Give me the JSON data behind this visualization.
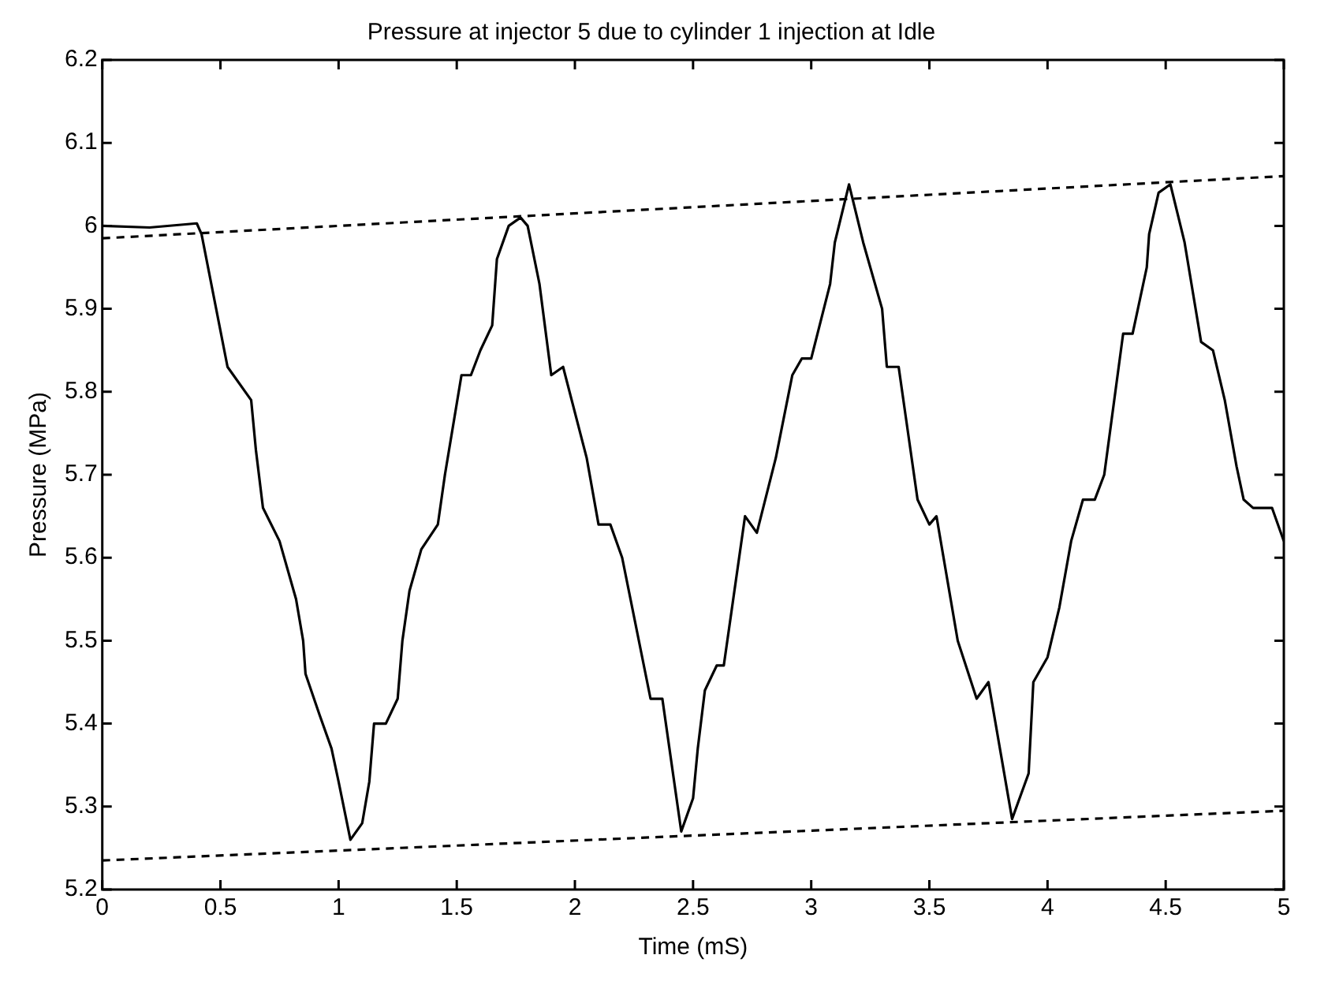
{
  "chart_data": {
    "type": "line",
    "title": "Pressure at injector 5 due to cylinder 1 injection at Idle",
    "xlabel": "Time (mS)",
    "ylabel": "Pressure (MPa)",
    "xlim": [
      0,
      5
    ],
    "xticks": [
      0,
      0.5,
      1,
      1.5,
      2,
      2.5,
      3,
      3.5,
      4,
      4.5,
      5
    ],
    "ylim": [
      5.2,
      6.2
    ],
    "yticks": [
      5.2,
      5.3,
      5.4,
      5.5,
      5.6,
      5.7,
      5.8,
      5.9,
      6,
      6.1,
      6.2
    ],
    "grid": false,
    "legend": false,
    "marker": "none",
    "series": [
      {
        "color": "#000000",
        "line_style": "solid",
        "x": [
          0,
          0.2,
          0.4,
          0.42,
          0.53,
          0.63,
          0.65,
          0.68,
          0.75,
          0.82,
          0.85,
          0.86,
          0.92,
          0.97,
          1.0,
          1.05,
          1.1,
          1.13,
          1.15,
          1.2,
          1.25,
          1.27,
          1.3,
          1.35,
          1.42,
          1.45,
          1.52,
          1.56,
          1.6,
          1.65,
          1.67,
          1.72,
          1.77,
          1.8,
          1.85,
          1.9,
          1.95,
          2.05,
          2.1,
          2.15,
          2.2,
          2.32,
          2.37,
          2.45,
          2.5,
          2.52,
          2.55,
          2.6,
          2.63,
          2.72,
          2.77,
          2.85,
          2.92,
          2.96,
          3.0,
          3.08,
          3.1,
          3.16,
          3.22,
          3.3,
          3.32,
          3.37,
          3.4,
          3.45,
          3.5,
          3.53,
          3.62,
          3.7,
          3.75,
          3.85,
          3.92,
          3.94,
          4.0,
          4.05,
          4.1,
          4.15,
          4.2,
          4.24,
          4.32,
          4.36,
          4.42,
          4.43,
          4.47,
          4.52,
          4.58,
          4.65,
          4.7,
          4.75,
          4.8,
          4.83,
          4.87,
          4.95,
          5.0
        ],
        "values": [
          6.0,
          5.998,
          6.003,
          5.99,
          5.83,
          5.79,
          5.73,
          5.66,
          5.62,
          5.55,
          5.5,
          5.46,
          5.41,
          5.37,
          5.33,
          5.26,
          5.28,
          5.33,
          5.4,
          5.4,
          5.43,
          5.5,
          5.56,
          5.61,
          5.64,
          5.7,
          5.82,
          5.82,
          5.85,
          5.88,
          5.96,
          6.0,
          6.01,
          6.0,
          5.93,
          5.82,
          5.83,
          5.72,
          5.64,
          5.64,
          5.6,
          5.43,
          5.43,
          5.27,
          5.31,
          5.37,
          5.44,
          5.47,
          5.47,
          5.65,
          5.63,
          5.72,
          5.82,
          5.84,
          5.84,
          5.93,
          5.98,
          6.05,
          5.98,
          5.9,
          5.83,
          5.83,
          5.77,
          5.67,
          5.64,
          5.65,
          5.5,
          5.43,
          5.45,
          5.285,
          5.34,
          5.45,
          5.48,
          5.54,
          5.62,
          5.67,
          5.67,
          5.7,
          5.87,
          5.87,
          5.95,
          5.99,
          6.04,
          6.05,
          5.98,
          5.86,
          5.85,
          5.79,
          5.71,
          5.67,
          5.66,
          5.66,
          5.62
        ]
      },
      {
        "color": "#000000",
        "line_style": "dashed",
        "x": [
          0,
          5
        ],
        "values": [
          5.985,
          6.06
        ]
      },
      {
        "color": "#000000",
        "line_style": "dashed",
        "x": [
          0,
          5
        ],
        "values": [
          5.235,
          5.295
        ]
      }
    ]
  }
}
